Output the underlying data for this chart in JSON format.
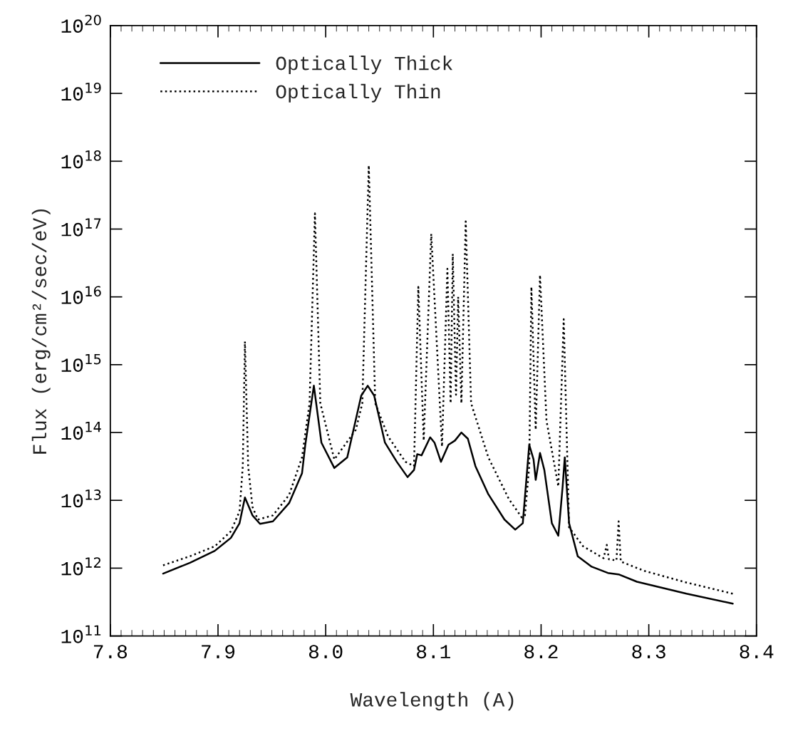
{
  "chart_data": {
    "type": "line",
    "xlabel": "Wavelength (A)",
    "ylabel": "Flux (erg/cm²/sec/eV)",
    "log": "y",
    "grid": false,
    "legend": "top left",
    "marker": "none",
    "xlim": [
      7.8,
      8.4
    ],
    "xticks": [
      {
        "value": 7.8,
        "label": "7.8"
      },
      {
        "value": 7.9,
        "label": "7.9"
      },
      {
        "value": 8.0,
        "label": "8.0"
      },
      {
        "value": 8.1,
        "label": "8.1"
      },
      {
        "value": 8.2,
        "label": "8.2"
      },
      {
        "value": 8.3,
        "label": "8.3"
      },
      {
        "value": 8.4,
        "label": "8.4"
      }
    ],
    "ylim": [
      100000000000.0,
      1e+20
    ],
    "yticks": [
      {
        "value": 100000000000.0,
        "label": "10$^{11}$"
      },
      {
        "value": 1000000000000.0,
        "label": "10$^{12}$"
      },
      {
        "value": 10000000000000.0,
        "label": "10$^{13}$"
      },
      {
        "value": 100000000000000.0,
        "label": "10$^{14}$"
      },
      {
        "value": 1000000000000000.0,
        "label": "10$^{15}$"
      },
      {
        "value": 1e+16,
        "label": "10$^{16}$"
      },
      {
        "value": 1e+17,
        "label": "10$^{17}$"
      },
      {
        "value": 1e+18,
        "label": "10$^{18}$"
      },
      {
        "value": 1e+19,
        "label": "10$^{19}$"
      },
      {
        "value": 1e+20,
        "label": "10$^{20}$"
      }
    ],
    "series": [
      {
        "name": "Optically Thick",
        "color": "#000000",
        "line_style": "solid",
        "x": [
          7.849,
          7.874,
          7.897,
          7.912,
          7.92,
          7.925,
          7.932,
          7.939,
          7.951,
          7.966,
          7.978,
          7.981,
          7.989,
          7.996,
          8.008,
          8.02,
          8.033,
          8.039,
          8.045,
          8.055,
          8.066,
          8.076,
          8.082,
          8.085,
          8.089,
          8.097,
          8.101,
          8.107,
          8.114,
          8.12,
          8.126,
          8.132,
          8.139,
          8.151,
          8.166,
          8.176,
          8.183,
          8.189,
          8.193,
          8.195,
          8.199,
          8.203,
          8.21,
          8.216,
          8.22,
          8.222,
          8.226,
          8.234,
          8.247,
          8.262,
          8.272,
          8.289,
          8.335,
          8.378
        ],
        "values": [
          830000000000.0,
          1200000000000.0,
          1800000000000.0,
          2800000000000.0,
          4600000000000.0,
          11000000000000.0,
          6000000000000.0,
          4500000000000.0,
          4900000000000.0,
          9100000000000.0,
          25000000000000.0,
          65000000000000.0,
          490000000000000.0,
          71000000000000.0,
          30000000000000.0,
          43000000000000.0,
          350000000000000.0,
          490000000000000.0,
          350000000000000.0,
          71000000000000.0,
          37000000000000.0,
          22000000000000.0,
          28000000000000.0,
          48000000000000.0,
          46000000000000.0,
          85000000000000.0,
          71000000000000.0,
          37000000000000.0,
          66000000000000.0,
          76000000000000.0,
          100000000000000.0,
          81000000000000.0,
          32000000000000.0,
          12300000000000.0,
          5200000000000.0,
          3700000000000.0,
          4600000000000.0,
          66000000000000.0,
          40000000000000.0,
          20000000000000.0,
          50000000000000.0,
          28000000000000.0,
          4600000000000.0,
          3000000000000.0,
          16000000000000.0,
          43000000000000.0,
          4600000000000.0,
          1500000000000.0,
          1050000000000.0,
          850000000000.0,
          810000000000.0,
          630000000000.0,
          420000000000.0,
          300000000000.0
        ]
      },
      {
        "name": "Optically Thin",
        "color": "#000000",
        "line_style": "dotted",
        "x": [
          7.849,
          7.874,
          7.897,
          7.912,
          7.92,
          7.923,
          7.925,
          7.928,
          7.932,
          7.937,
          7.951,
          7.966,
          7.978,
          7.985,
          7.99,
          7.995,
          8.008,
          8.028,
          8.034,
          8.04,
          8.046,
          8.058,
          8.074,
          8.082,
          8.086,
          8.091,
          8.098,
          8.108,
          8.113,
          8.116,
          8.118,
          8.121,
          8.123,
          8.126,
          8.13,
          8.135,
          8.151,
          8.17,
          8.182,
          8.185,
          8.189,
          8.191,
          8.195,
          8.199,
          8.205,
          8.216,
          8.221,
          8.226,
          8.239,
          8.258,
          8.261,
          8.263,
          8.27,
          8.272,
          8.274,
          8.296,
          8.334,
          8.378
        ],
        "values": [
          1100000000000.0,
          1500000000000.0,
          2100000000000.0,
          3500000000000.0,
          6900000000000.0,
          32000000000000.0,
          2200000000000000.0,
          32000000000000.0,
          8000000000000.0,
          5200000000000.0,
          6000000000000.0,
          12000000000000.0,
          43000000000000.0,
          270000000000000.0,
          1.7e+17,
          270000000000000.0,
          40000000000000.0,
          110000000000000.0,
          270000000000000.0,
          8.7e+17,
          270000000000000.0,
          87000000000000.0,
          37000000000000.0,
          32000000000000.0,
          1.4e+16,
          76000000000000.0,
          8.5e+16,
          62000000000000.0,
          2.6e+16,
          270000000000000.0,
          4.3e+16,
          360000000000000.0,
          1e+16,
          270000000000000.0,
          1.3e+17,
          270000000000000.0,
          43000000000000.0,
          10500000000000.0,
          5600000000000.0,
          6000000000000.0,
          32000000000000.0,
          1.4e+16,
          110000000000000.0,
          2.1e+16,
          150000000000000.0,
          16000000000000.0,
          4700000000000000.0,
          4000000000000.0,
          2100000000000.0,
          1400000000000.0,
          2200000000000.0,
          1350000000000.0,
          1300000000000.0,
          4900000000000.0,
          1250000000000.0,
          910000000000.0,
          620000000000.0,
          420000000000.0
        ]
      }
    ]
  }
}
